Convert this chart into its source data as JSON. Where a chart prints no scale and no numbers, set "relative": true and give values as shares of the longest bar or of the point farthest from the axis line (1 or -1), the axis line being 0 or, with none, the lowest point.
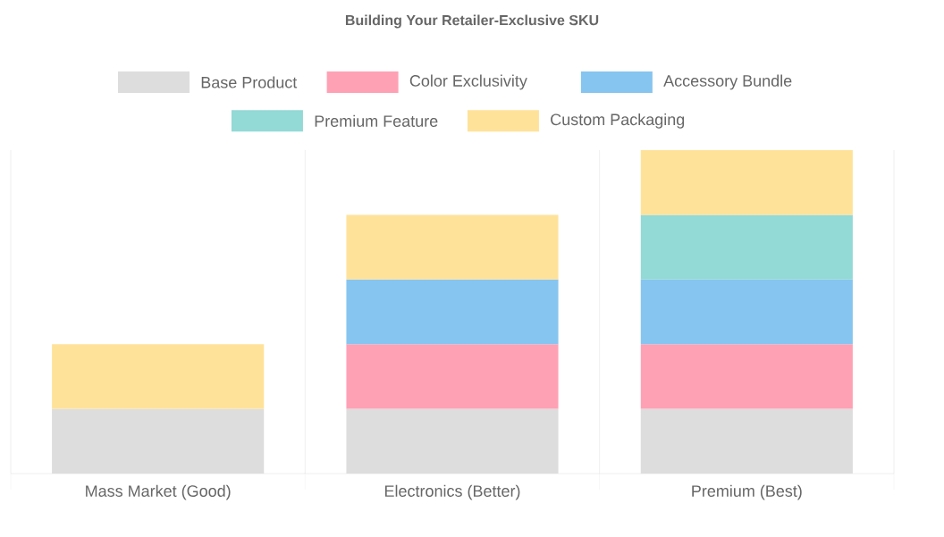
{
  "chart_data": {
    "type": "bar",
    "title": "Building Your Retailer-Exclusive SKU",
    "categories": [
      "Mass Market (Good)",
      "Electronics (Better)",
      "Premium (Best)"
    ],
    "series": [
      {
        "name": "Base Product",
        "color": "#dddddd",
        "values": [
          0.2,
          0.2,
          0.2
        ]
      },
      {
        "name": "Color Exclusivity",
        "color": "#ffa1b5",
        "values": [
          null,
          0.2,
          0.2
        ]
      },
      {
        "name": "Accessory Bundle",
        "color": "#86c5f0",
        "values": [
          null,
          0.2,
          0.2
        ]
      },
      {
        "name": "Premium Feature",
        "color": "#93d9d6",
        "values": [
          null,
          null,
          0.2
        ]
      },
      {
        "name": "Custom Packaging",
        "color": "#ffe29a",
        "values": [
          0.2,
          0.2,
          0.2
        ]
      }
    ],
    "stacked": true,
    "relative": true,
    "grid": "x",
    "legend": "top"
  }
}
